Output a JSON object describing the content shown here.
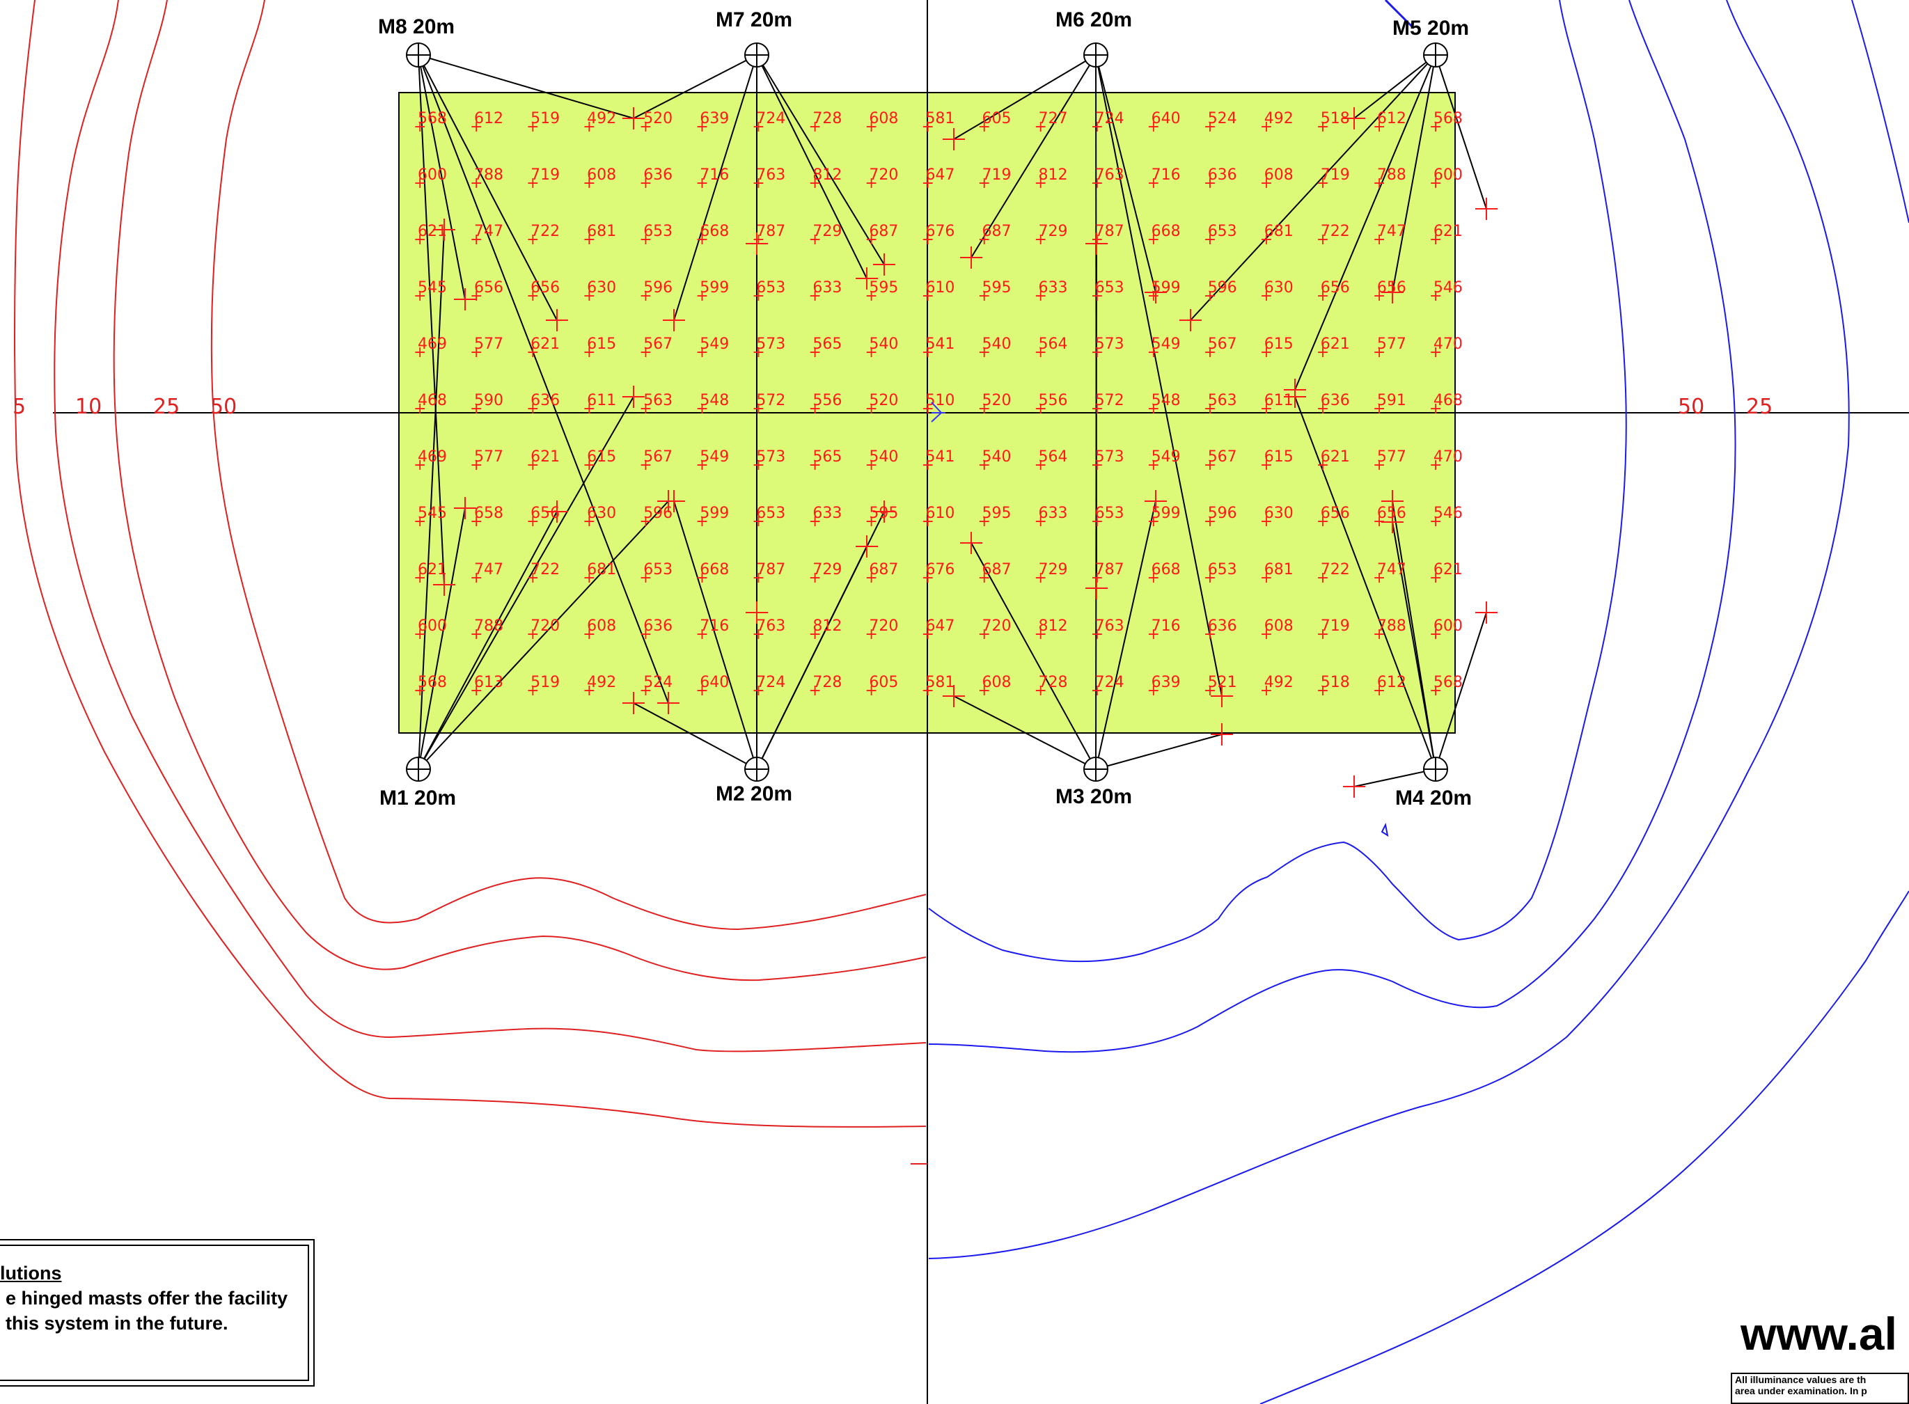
{
  "masts": [
    {
      "id": "M1",
      "label": "M1 20m",
      "pos": "bottom-left"
    },
    {
      "id": "M2",
      "label": "M2 20m",
      "pos": "bottom"
    },
    {
      "id": "M3",
      "label": "M3 20m",
      "pos": "bottom"
    },
    {
      "id": "M4",
      "label": "M4 20m",
      "pos": "bottom-right"
    },
    {
      "id": "M5",
      "label": "M5 20m",
      "pos": "top-right"
    },
    {
      "id": "M6",
      "label": "M6 20m",
      "pos": "top"
    },
    {
      "id": "M7",
      "label": "M7 20m",
      "pos": "top"
    },
    {
      "id": "M8",
      "label": "M8 20m",
      "pos": "top-left"
    }
  ],
  "grid_values": [
    [
      "568",
      "612",
      "519",
      "492",
      "520",
      "639",
      "724",
      "728",
      "608",
      "581",
      "605",
      "727",
      "724",
      "640",
      "524",
      "492",
      "518",
      "612",
      "568"
    ],
    [
      "600",
      "788",
      "719",
      "608",
      "636",
      "716",
      "763",
      "812",
      "720",
      "647",
      "719",
      "812",
      "763",
      "716",
      "636",
      "608",
      "719",
      "788",
      "600"
    ],
    [
      "621",
      "747",
      "722",
      "681",
      "653",
      "668",
      "787",
      "729",
      "687",
      "676",
      "687",
      "729",
      "787",
      "668",
      "653",
      "681",
      "722",
      "747",
      "621"
    ],
    [
      "545",
      "656",
      "656",
      "630",
      "596",
      "599",
      "653",
      "633",
      "595",
      "610",
      "595",
      "633",
      "653",
      "599",
      "596",
      "630",
      "656",
      "656",
      "546"
    ],
    [
      "469",
      "577",
      "621",
      "615",
      "567",
      "549",
      "573",
      "565",
      "540",
      "541",
      "540",
      "564",
      "573",
      "549",
      "567",
      "615",
      "621",
      "577",
      "470"
    ],
    [
      "468",
      "590",
      "636",
      "611",
      "563",
      "548",
      "572",
      "556",
      "520",
      "510",
      "520",
      "556",
      "572",
      "548",
      "563",
      "611",
      "636",
      "591",
      "468"
    ],
    [
      "469",
      "577",
      "621",
      "615",
      "567",
      "549",
      "573",
      "565",
      "540",
      "541",
      "540",
      "564",
      "573",
      "549",
      "567",
      "615",
      "621",
      "577",
      "470"
    ],
    [
      "545",
      "658",
      "656",
      "630",
      "596",
      "599",
      "653",
      "633",
      "595",
      "610",
      "595",
      "633",
      "653",
      "599",
      "596",
      "630",
      "656",
      "656",
      "546"
    ],
    [
      "621",
      "747",
      "722",
      "681",
      "653",
      "668",
      "787",
      "729",
      "687",
      "676",
      "687",
      "729",
      "787",
      "668",
      "653",
      "681",
      "722",
      "747",
      "621"
    ],
    [
      "600",
      "788",
      "720",
      "608",
      "636",
      "716",
      "763",
      "812",
      "720",
      "647",
      "720",
      "812",
      "763",
      "716",
      "636",
      "608",
      "719",
      "788",
      "600"
    ],
    [
      "568",
      "613",
      "519",
      "492",
      "524",
      "640",
      "724",
      "728",
      "605",
      "581",
      "608",
      "728",
      "724",
      "639",
      "521",
      "492",
      "518",
      "612",
      "568"
    ]
  ],
  "highlighted_value": {
    "row": 5,
    "col": 0,
    "color": "#22dd22"
  },
  "isolux_labels": [
    "5",
    "10",
    "25",
    "50",
    "50",
    "25"
  ],
  "colors": {
    "field": "#ddf978",
    "contour_left": "#e02020",
    "contour_right": "#1a1aee",
    "values": "#ff1a1a"
  },
  "notes": {
    "title": "lutions",
    "line1": "e hinged masts offer the facility",
    "line2": "this system in the future."
  },
  "website": "www.al",
  "disclaimer": {
    "line1": "All illuminance values are th",
    "line2": "area under examination. In p"
  }
}
